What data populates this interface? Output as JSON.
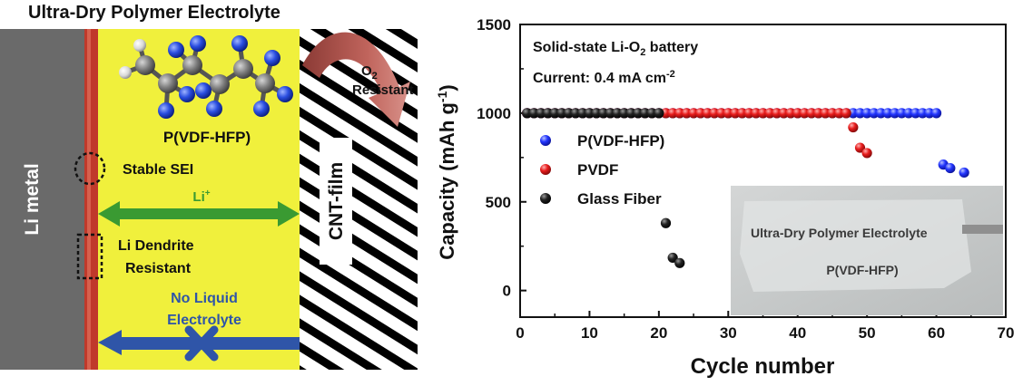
{
  "schematic": {
    "title": "Ultra-Dry Polymer Electrolyte",
    "anode_label": "Li metal",
    "cathode_label": "CNT-film",
    "o2_label_main": "O",
    "o2_label_sub": "2",
    "o2_resistant": "Resistant",
    "polymer_label": "P(VDF-HFP)",
    "sei_label": "Stable SEI",
    "li_ion_main": "Li",
    "li_ion_sup": "+",
    "dendrite_label_1": "Li Dendrite",
    "dendrite_label_2": "Resistant",
    "no_liquid_1": "No Liquid",
    "no_liquid_2": "Electrolyte",
    "colors": {
      "electrolyte": "#f0f03c",
      "li_metal": "#6a6a6a",
      "sei_layer": "#c0392b",
      "li_arrow": "#3a9a32",
      "liquid_arrow": "#2f55a8",
      "o2_arrow": "#b5524a"
    }
  },
  "chart_data": {
    "type": "scatter",
    "xlabel": "Cycle number",
    "ylabel": "Capacity (mAh g-1)",
    "ylabel_parts": {
      "main": "Capacity (mAh g",
      "sup": "-1",
      "end": ")"
    },
    "xlim": [
      0,
      70
    ],
    "ylim": [
      -150,
      1500
    ],
    "xticks": [
      0,
      10,
      20,
      30,
      40,
      50,
      60,
      70
    ],
    "yticks": [
      0,
      500,
      1000,
      1500
    ],
    "annotation_1": {
      "main": "Solid-state Li-O",
      "sub": "2",
      "end": " battery"
    },
    "annotation_2": {
      "main": "Current: 0.4 mA cm",
      "sup": "-2"
    },
    "inset": {
      "line1": "Ultra-Dry Polymer Electrolyte",
      "line2": "P(VDF-HFP)"
    },
    "legend_position": "left",
    "series": [
      {
        "name": "P(VDF-HFP)",
        "color": "#1a2ae0",
        "x": [
          1,
          2,
          3,
          4,
          5,
          6,
          7,
          8,
          9,
          10,
          11,
          12,
          13,
          14,
          15,
          16,
          17,
          18,
          19,
          20,
          21,
          22,
          23,
          24,
          25,
          26,
          27,
          28,
          29,
          30,
          31,
          32,
          33,
          34,
          35,
          36,
          37,
          38,
          39,
          40,
          41,
          42,
          43,
          44,
          45,
          46,
          47,
          48,
          49,
          50,
          51,
          52,
          53,
          54,
          55,
          56,
          57,
          58,
          59,
          60,
          61,
          62,
          64
        ],
        "y": [
          1000,
          1000,
          1000,
          1000,
          1000,
          1000,
          1000,
          1000,
          1000,
          1000,
          1000,
          1000,
          1000,
          1000,
          1000,
          1000,
          1000,
          1000,
          1000,
          1000,
          1000,
          1000,
          1000,
          1000,
          1000,
          1000,
          1000,
          1000,
          1000,
          1000,
          1000,
          1000,
          1000,
          1000,
          1000,
          1000,
          1000,
          1000,
          1000,
          1000,
          1000,
          1000,
          1000,
          1000,
          1000,
          1000,
          1000,
          1000,
          1000,
          1000,
          1000,
          1000,
          1000,
          1000,
          1000,
          1000,
          1000,
          1000,
          1000,
          1000,
          710,
          690,
          665
        ]
      },
      {
        "name": "PVDF",
        "color": "#e01818",
        "x": [
          1,
          2,
          3,
          4,
          5,
          6,
          7,
          8,
          9,
          10,
          11,
          12,
          13,
          14,
          15,
          16,
          17,
          18,
          19,
          20,
          21,
          22,
          23,
          24,
          25,
          26,
          27,
          28,
          29,
          30,
          31,
          32,
          33,
          34,
          35,
          36,
          37,
          38,
          39,
          40,
          41,
          42,
          43,
          44,
          45,
          46,
          47,
          48,
          49,
          50
        ],
        "y": [
          1000,
          1000,
          1000,
          1000,
          1000,
          1000,
          1000,
          1000,
          1000,
          1000,
          1000,
          1000,
          1000,
          1000,
          1000,
          1000,
          1000,
          1000,
          1000,
          1000,
          1000,
          1000,
          1000,
          1000,
          1000,
          1000,
          1000,
          1000,
          1000,
          1000,
          1000,
          1000,
          1000,
          1000,
          1000,
          1000,
          1000,
          1000,
          1000,
          1000,
          1000,
          1000,
          1000,
          1000,
          1000,
          1000,
          1000,
          920,
          805,
          775
        ]
      },
      {
        "name": "Glass Fiber",
        "color": "#111111",
        "x": [
          1,
          2,
          3,
          4,
          5,
          6,
          7,
          8,
          9,
          10,
          11,
          12,
          13,
          14,
          15,
          16,
          17,
          18,
          19,
          20,
          21,
          22,
          23
        ],
        "y": [
          1000,
          1000,
          1000,
          1000,
          1000,
          1000,
          1000,
          1000,
          1000,
          1000,
          1000,
          1000,
          1000,
          1000,
          1000,
          1000,
          1000,
          1000,
          1000,
          1000,
          380,
          185,
          155
        ]
      }
    ]
  }
}
